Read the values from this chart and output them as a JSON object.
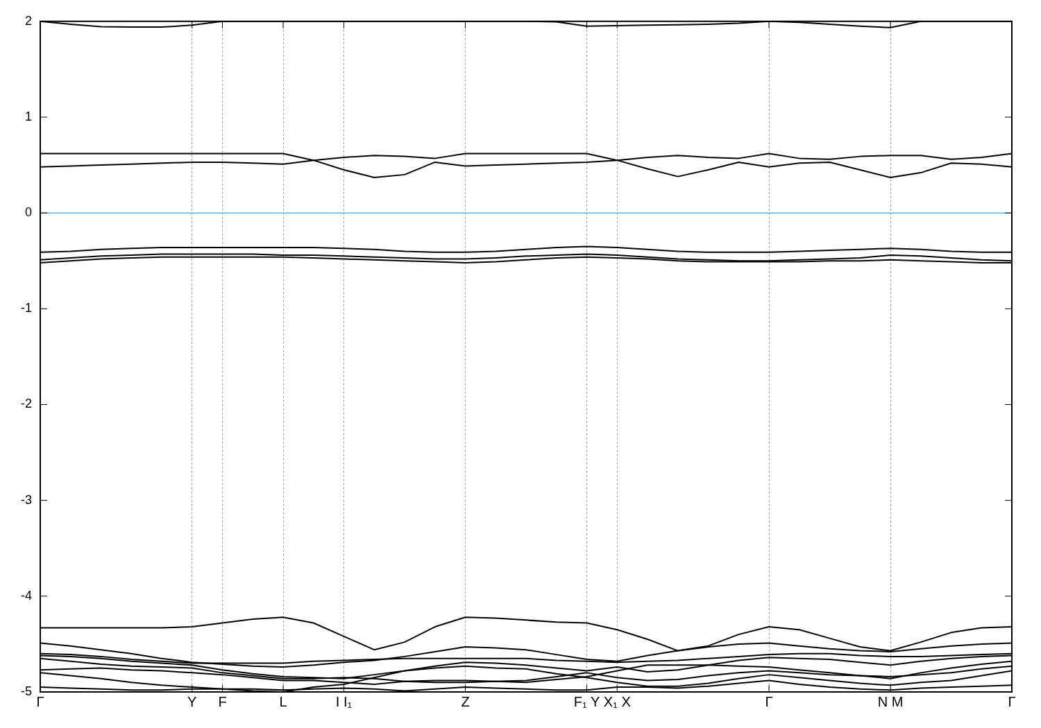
{
  "chart_data": {
    "type": "line",
    "categories": [
      "Γ",
      null,
      null,
      null,
      null,
      "Y",
      "F",
      null,
      "L",
      null,
      "I I₁",
      null,
      null,
      null,
      "Z",
      null,
      null,
      null,
      "F₁ Y",
      "X₁ X",
      null,
      null,
      null,
      null,
      "Γ",
      null,
      null,
      null,
      "N M",
      null,
      null,
      null,
      "Γ"
    ],
    "series": [
      {
        "color": "#000000",
        "values": [
          2.0,
          1.97,
          1.945,
          1.94,
          1.94,
          1.96,
          2.0,
          2.0,
          2.0,
          2.0,
          2.0,
          2.0,
          2.0,
          2.0,
          2.0,
          2.0,
          2.0,
          1.995,
          1.95,
          1.955,
          1.96,
          1.965,
          1.97,
          1.98,
          2.0,
          1.99,
          1.97,
          1.95,
          1.935,
          2.0,
          2.0,
          2.0,
          2.0
        ]
      },
      {
        "color": "#000000",
        "values": [
          0.62,
          0.62,
          0.62,
          0.62,
          0.62,
          0.62,
          0.62,
          0.62,
          0.62,
          0.55,
          0.58,
          0.6,
          0.59,
          0.57,
          0.62,
          0.62,
          0.62,
          0.62,
          0.62,
          0.55,
          0.58,
          0.6,
          0.58,
          0.57,
          0.62,
          0.57,
          0.56,
          0.59,
          0.6,
          0.6,
          0.56,
          0.58,
          0.62
        ]
      },
      {
        "color": "#000000",
        "values": [
          0.48,
          0.49,
          0.5,
          0.51,
          0.52,
          0.53,
          0.53,
          0.52,
          0.51,
          0.55,
          0.45,
          0.37,
          0.4,
          0.53,
          0.49,
          0.5,
          0.51,
          0.52,
          0.53,
          0.55,
          0.46,
          0.38,
          0.45,
          0.53,
          0.48,
          0.52,
          0.53,
          0.45,
          0.37,
          0.42,
          0.52,
          0.51,
          0.48
        ]
      },
      {
        "color": "#000000",
        "values": [
          -0.41,
          -0.4,
          -0.38,
          -0.37,
          -0.36,
          -0.36,
          -0.36,
          -0.36,
          -0.36,
          -0.36,
          -0.37,
          -0.38,
          -0.4,
          -0.41,
          -0.41,
          -0.4,
          -0.38,
          -0.36,
          -0.35,
          -0.36,
          -0.38,
          -0.4,
          -0.41,
          -0.41,
          -0.41,
          -0.4,
          -0.39,
          -0.38,
          -0.37,
          -0.38,
          -0.4,
          -0.41,
          -0.41
        ]
      },
      {
        "color": "#000000",
        "values": [
          -0.49,
          -0.47,
          -0.45,
          -0.44,
          -0.43,
          -0.43,
          -0.43,
          -0.43,
          -0.44,
          -0.44,
          -0.45,
          -0.46,
          -0.47,
          -0.48,
          -0.48,
          -0.47,
          -0.45,
          -0.44,
          -0.43,
          -0.44,
          -0.46,
          -0.48,
          -0.49,
          -0.5,
          -0.5,
          -0.49,
          -0.48,
          -0.47,
          -0.44,
          -0.45,
          -0.47,
          -0.49,
          -0.5
        ]
      },
      {
        "color": "#000000",
        "values": [
          -0.52,
          -0.5,
          -0.48,
          -0.47,
          -0.46,
          -0.46,
          -0.46,
          -0.46,
          -0.46,
          -0.47,
          -0.48,
          -0.49,
          -0.5,
          -0.51,
          -0.52,
          -0.51,
          -0.49,
          -0.47,
          -0.46,
          -0.47,
          -0.48,
          -0.5,
          -0.51,
          -0.51,
          -0.51,
          -0.51,
          -0.5,
          -0.5,
          -0.49,
          -0.5,
          -0.51,
          -0.52,
          -0.52
        ]
      },
      {
        "color": "#000000",
        "values": [
          -4.33,
          -4.33,
          -4.33,
          -4.33,
          -4.33,
          -4.32,
          -4.28,
          -4.24,
          -4.22,
          -4.28,
          -4.42,
          -4.56,
          -4.48,
          -4.32,
          -4.22,
          -4.23,
          -4.25,
          -4.27,
          -4.28,
          -4.35,
          -4.45,
          -4.57,
          -4.52,
          -4.4,
          -4.32,
          -4.35,
          -4.44,
          -4.53,
          -4.57,
          -4.48,
          -4.38,
          -4.33,
          -4.32
        ]
      },
      {
        "color": "#000000",
        "values": [
          -4.49,
          -4.52,
          -4.56,
          -4.6,
          -4.65,
          -4.69,
          -4.71,
          -4.73,
          -4.74,
          -4.72,
          -4.69,
          -4.67,
          -4.63,
          -4.58,
          -4.53,
          -4.54,
          -4.56,
          -4.61,
          -4.66,
          -4.68,
          -4.62,
          -4.57,
          -4.53,
          -4.5,
          -4.49,
          -4.52,
          -4.55,
          -4.57,
          -4.58,
          -4.55,
          -4.52,
          -4.5,
          -4.49
        ]
      },
      {
        "color": "#000000",
        "values": [
          -4.6,
          -4.61,
          -4.63,
          -4.66,
          -4.68,
          -4.7,
          -4.7,
          -4.7,
          -4.7,
          -4.68,
          -4.67,
          -4.66,
          -4.65,
          -4.65,
          -4.65,
          -4.65,
          -4.65,
          -4.67,
          -4.68,
          -4.69,
          -4.68,
          -4.67,
          -4.65,
          -4.63,
          -4.61,
          -4.6,
          -4.6,
          -4.62,
          -4.63,
          -4.63,
          -4.62,
          -4.61,
          -4.6
        ]
      },
      {
        "color": "#000000",
        "values": [
          -4.62,
          -4.63,
          -4.65,
          -4.68,
          -4.7,
          -4.72,
          -4.77,
          -4.81,
          -4.84,
          -4.85,
          -4.86,
          -4.82,
          -4.78,
          -4.73,
          -4.69,
          -4.7,
          -4.72,
          -4.75,
          -4.78,
          -4.74,
          -4.79,
          -4.77,
          -4.72,
          -4.67,
          -4.64,
          -4.65,
          -4.66,
          -4.69,
          -4.72,
          -4.68,
          -4.65,
          -4.63,
          -4.62
        ]
      },
      {
        "color": "#000000",
        "values": [
          -4.65,
          -4.68,
          -4.71,
          -4.73,
          -4.74,
          -4.75,
          -4.8,
          -4.83,
          -4.86,
          -4.86,
          -4.85,
          -4.86,
          -4.89,
          -4.88,
          -4.88,
          -4.89,
          -4.9,
          -4.87,
          -4.84,
          -4.78,
          -4.72,
          -4.72,
          -4.72,
          -4.73,
          -4.74,
          -4.77,
          -4.8,
          -4.83,
          -4.86,
          -4.8,
          -4.75,
          -4.71,
          -4.68
        ]
      },
      {
        "color": "#000000",
        "values": [
          -4.77,
          -4.76,
          -4.75,
          -4.77,
          -4.78,
          -4.8,
          -4.82,
          -4.85,
          -4.88,
          -4.88,
          -4.9,
          -4.92,
          -4.89,
          -4.9,
          -4.9,
          -4.89,
          -4.88,
          -4.84,
          -4.8,
          -4.85,
          -4.88,
          -4.87,
          -4.83,
          -4.8,
          -4.78,
          -4.8,
          -4.82,
          -4.83,
          -4.84,
          -4.82,
          -4.8,
          -4.76,
          -4.73
        ]
      },
      {
        "color": "#000000",
        "values": [
          -4.8,
          -4.83,
          -4.86,
          -4.9,
          -4.93,
          -4.95,
          -4.97,
          -4.99,
          -5.0,
          -4.95,
          -4.92,
          -4.85,
          -4.78,
          -4.75,
          -4.73,
          -4.75,
          -4.76,
          -4.81,
          -4.85,
          -4.9,
          -4.94,
          -4.94,
          -4.91,
          -4.86,
          -4.82,
          -4.85,
          -4.88,
          -4.91,
          -4.93,
          -4.9,
          -4.88,
          -4.83,
          -4.78
        ]
      },
      {
        "color": "#000000",
        "values": [
          -4.95,
          -4.96,
          -4.97,
          -4.98,
          -4.98,
          -4.97,
          -4.97,
          -4.97,
          -4.98,
          -4.97,
          -4.96,
          -4.97,
          -4.99,
          -4.97,
          -4.95,
          -4.96,
          -4.97,
          -4.98,
          -4.98,
          -4.95,
          -4.95,
          -4.96,
          -4.94,
          -4.91,
          -4.88,
          -4.92,
          -4.95,
          -4.97,
          -4.98,
          -4.96,
          -4.95,
          -4.94,
          -4.93
        ]
      }
    ],
    "ylim": [
      -5,
      2
    ],
    "yticks": [
      -5,
      -4,
      -3,
      -2,
      -1,
      0,
      1,
      2
    ],
    "grid": "x",
    "legend": false,
    "marker": "none",
    "line_style": "solid",
    "ref_lines": [
      {
        "axis": "y",
        "value": 0,
        "color": "#56b4e9"
      }
    ]
  }
}
